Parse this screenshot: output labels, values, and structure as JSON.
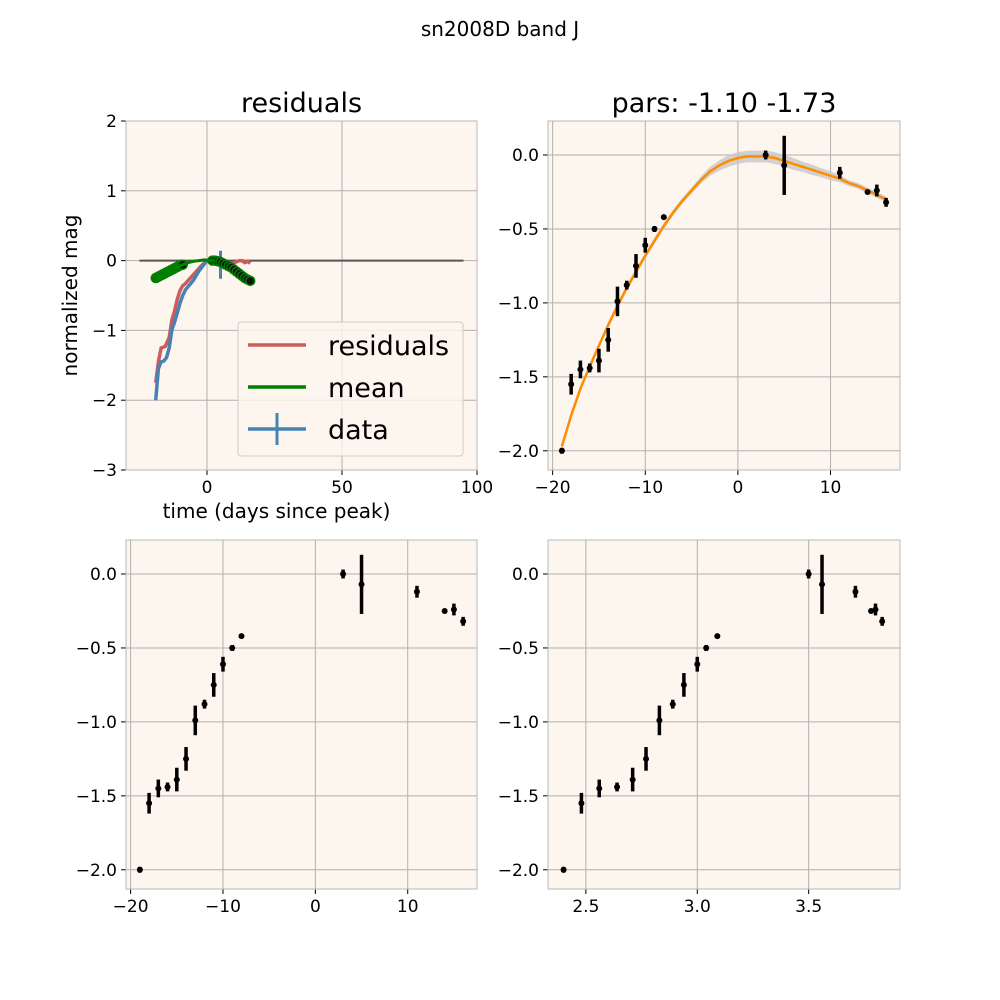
{
  "figure": {
    "title": "sn2008D band J"
  },
  "colors": {
    "plot_bg": "#fdf6ee",
    "grid": "#b0b0b0",
    "residuals": "#cd5c5c",
    "mean": "#008000",
    "data": "#4682b4",
    "fit": "#ff8c00",
    "band": "#c8c8c8",
    "points": "#000000",
    "zero_line": "#555555"
  },
  "chart_data": [
    {
      "panel": "residuals",
      "type": "line",
      "title": "residuals",
      "xlabel": "time (days since peak)",
      "ylabel": "normalized mag",
      "xlim": [
        -30,
        100
      ],
      "ylim": [
        -3,
        2
      ],
      "xticks": [
        0,
        50,
        100
      ],
      "yticks": [
        -3,
        -2,
        -1,
        0,
        1,
        2
      ],
      "grid": true,
      "legend": {
        "placement": "lower-right",
        "entries": [
          "residuals",
          "mean",
          "data"
        ]
      },
      "zero_line": {
        "y": 0,
        "x_range": [
          -25,
          95
        ]
      },
      "series": [
        {
          "name": "residuals",
          "x": [
            -19,
            -18,
            -17,
            -15.5,
            -14,
            -13,
            -12,
            -11,
            -10,
            -9,
            -8,
            -5,
            -2,
            0,
            3,
            6,
            8,
            10,
            12,
            13,
            14,
            15,
            16
          ],
          "y": [
            -1.75,
            -1.45,
            -1.25,
            -1.23,
            -1.1,
            -0.85,
            -0.72,
            -0.55,
            -0.43,
            -0.36,
            -0.33,
            -0.2,
            -0.07,
            0.0,
            0.0,
            -0.03,
            -0.06,
            -0.03,
            0.0,
            0.0,
            -0.03,
            -0.01,
            -0.04
          ]
        },
        {
          "name": "mean",
          "x": [
            -19,
            -17,
            -15,
            -13,
            -11,
            -9,
            -7,
            -5,
            -3,
            -1,
            1,
            3
          ],
          "y": [
            -0.25,
            -0.21,
            -0.17,
            -0.13,
            -0.09,
            -0.06,
            -0.03,
            -0.01,
            0.0,
            0.01,
            0.0,
            0.0
          ]
        },
        {
          "name": "data",
          "x": [
            -19,
            -18,
            -17,
            -16,
            -15,
            -14,
            -13,
            -12,
            -11,
            -10,
            -9,
            -8,
            -5,
            -3,
            0,
            3,
            5,
            7,
            9,
            11,
            12,
            14,
            15,
            16
          ],
          "y": [
            -2.0,
            -1.55,
            -1.45,
            -1.44,
            -1.39,
            -1.25,
            -0.99,
            -0.88,
            -0.75,
            -0.61,
            -0.5,
            -0.42,
            -0.28,
            -0.15,
            0.0,
            -0.02,
            -0.06,
            -0.11,
            -0.13,
            -0.15,
            -0.18,
            -0.24,
            -0.26,
            -0.31
          ]
        }
      ],
      "data_point_errors": [
        {
          "x": 5,
          "y": -0.06,
          "err": 0.2
        }
      ],
      "markers": {
        "x": [
          -19,
          -18.5,
          -18,
          -17.5,
          -17,
          -16.5,
          -16,
          -15.5,
          -15,
          -14.5,
          -14,
          -13.5,
          -13,
          -12.5,
          -12,
          -11.5,
          -11,
          -10.5,
          -10,
          -9.5,
          -9,
          2,
          3,
          4,
          5,
          6,
          7,
          8,
          9,
          10,
          11,
          12,
          13,
          14,
          15,
          16
        ],
        "y": [
          -0.25,
          -0.24,
          -0.23,
          -0.22,
          -0.21,
          -0.2,
          -0.19,
          -0.18,
          -0.17,
          -0.16,
          -0.15,
          -0.14,
          -0.13,
          -0.12,
          -0.11,
          -0.1,
          -0.09,
          -0.08,
          -0.07,
          -0.06,
          -0.06,
          0.0,
          0.0,
          -0.01,
          -0.02,
          -0.04,
          -0.06,
          -0.08,
          -0.1,
          -0.13,
          -0.16,
          -0.19,
          -0.22,
          -0.25,
          -0.27,
          -0.29
        ]
      }
    },
    {
      "panel": "fit",
      "type": "line",
      "title": "pars: -1.10 -1.73",
      "xlim": [
        -20.5,
        17.5
      ],
      "ylim": [
        -2.13,
        0.23
      ],
      "xticks": [
        -20,
        -10,
        0,
        10
      ],
      "yticks": [
        -2.0,
        -1.5,
        -1.0,
        -0.5,
        0.0
      ],
      "ytick_labels": [
        "−2.0",
        "−1.5",
        "−1.0",
        "−0.5",
        "0.0"
      ],
      "xtick_labels": [
        "−20",
        "−10",
        "0",
        "10"
      ],
      "grid": true,
      "fit_curve": {
        "x": [
          -19,
          -18,
          -17,
          -16,
          -15,
          -14,
          -13,
          -12,
          -11,
          -10,
          -9,
          -8,
          -7,
          -6,
          -5,
          -4,
          -3,
          -2,
          -1,
          0,
          1,
          2,
          3,
          4,
          5,
          6,
          7,
          8,
          9,
          10,
          11,
          12,
          13,
          14,
          15,
          16
        ],
        "y": [
          -1.97,
          -1.76,
          -1.58,
          -1.43,
          -1.29,
          -1.15,
          -1.02,
          -0.9,
          -0.79,
          -0.68,
          -0.58,
          -0.48,
          -0.39,
          -0.31,
          -0.24,
          -0.17,
          -0.11,
          -0.07,
          -0.04,
          -0.02,
          -0.01,
          -0.01,
          -0.01,
          -0.02,
          -0.04,
          -0.06,
          -0.08,
          -0.1,
          -0.12,
          -0.14,
          -0.16,
          -0.19,
          -0.21,
          -0.24,
          -0.27,
          -0.3
        ]
      },
      "band_halfwidth": [
        0.02,
        0.02,
        0.02,
        0.02,
        0.02,
        0.02,
        0.02,
        0.02,
        0.02,
        0.02,
        0.02,
        0.02,
        0.02,
        0.02,
        0.02,
        0.025,
        0.03,
        0.035,
        0.04,
        0.04,
        0.04,
        0.04,
        0.04,
        0.04,
        0.04,
        0.04,
        0.035,
        0.035,
        0.03,
        0.03,
        0.025,
        0.02,
        0.02,
        0.02,
        0.02,
        0.02
      ],
      "points": {
        "x": [
          -19,
          -18,
          -17,
          -16,
          -15,
          -14,
          -13,
          -12,
          -11,
          -10,
          -9,
          -8,
          3,
          5,
          11,
          14,
          15,
          16
        ],
        "y": [
          -2.0,
          -1.55,
          -1.45,
          -1.44,
          -1.39,
          -1.25,
          -0.99,
          -0.88,
          -0.75,
          -0.61,
          -0.5,
          -0.42,
          0.0,
          -0.07,
          -0.12,
          -0.25,
          -0.24,
          -0.32
        ],
        "err": [
          0.02,
          0.07,
          0.06,
          0.03,
          0.08,
          0.08,
          0.1,
          0.03,
          0.08,
          0.05,
          0.02,
          0.01,
          0.03,
          0.2,
          0.04,
          0.01,
          0.04,
          0.03
        ]
      }
    },
    {
      "panel": "data-vs-time",
      "type": "scatter",
      "xlim": [
        -20.5,
        17.5
      ],
      "ylim": [
        -2.13,
        0.23
      ],
      "xticks": [
        -20,
        -10,
        0,
        10
      ],
      "xtick_labels": [
        "−20",
        "−10",
        "0",
        "10"
      ],
      "yticks": [
        -2.0,
        -1.5,
        -1.0,
        -0.5,
        0.0
      ],
      "ytick_labels": [
        "−2.0",
        "−1.5",
        "−1.0",
        "−0.5",
        "0.0"
      ],
      "grid": true,
      "points": {
        "x": [
          -19,
          -18,
          -17,
          -16,
          -15,
          -14,
          -13,
          -12,
          -11,
          -10,
          -9,
          -8,
          3,
          5,
          11,
          14,
          15,
          16
        ],
        "y": [
          -2.0,
          -1.55,
          -1.45,
          -1.44,
          -1.39,
          -1.25,
          -0.99,
          -0.88,
          -0.75,
          -0.61,
          -0.5,
          -0.42,
          0.0,
          -0.07,
          -0.12,
          -0.25,
          -0.24,
          -0.32
        ],
        "err": [
          0.02,
          0.07,
          0.06,
          0.03,
          0.08,
          0.08,
          0.1,
          0.03,
          0.08,
          0.05,
          0.02,
          0.01,
          0.03,
          0.2,
          0.04,
          0.01,
          0.04,
          0.03
        ]
      }
    },
    {
      "panel": "data-vs-log-time",
      "type": "scatter",
      "xlim": [
        2.33,
        3.91
      ],
      "ylim": [
        -2.13,
        0.23
      ],
      "xticks": [
        2.5,
        3.0,
        3.5
      ],
      "xtick_labels": [
        "2.5",
        "3.0",
        "3.5"
      ],
      "yticks": [
        -2.0,
        -1.5,
        -1.0,
        -0.5,
        0.0
      ],
      "ytick_labels": [
        "−2.0",
        "−1.5",
        "−1.0",
        "−0.5",
        "0.0"
      ],
      "grid": true,
      "points": {
        "x": [
          2.4,
          2.48,
          2.56,
          2.64,
          2.71,
          2.77,
          2.83,
          2.89,
          2.94,
          3.0,
          3.04,
          3.09,
          3.5,
          3.56,
          3.71,
          3.78,
          3.8,
          3.83
        ],
        "y": [
          -2.0,
          -1.55,
          -1.45,
          -1.44,
          -1.39,
          -1.25,
          -0.99,
          -0.88,
          -0.75,
          -0.61,
          -0.5,
          -0.42,
          0.0,
          -0.07,
          -0.12,
          -0.25,
          -0.24,
          -0.32
        ],
        "err": [
          0.02,
          0.07,
          0.06,
          0.03,
          0.08,
          0.08,
          0.1,
          0.03,
          0.08,
          0.05,
          0.02,
          0.01,
          0.03,
          0.2,
          0.04,
          0.01,
          0.04,
          0.03
        ]
      }
    }
  ]
}
